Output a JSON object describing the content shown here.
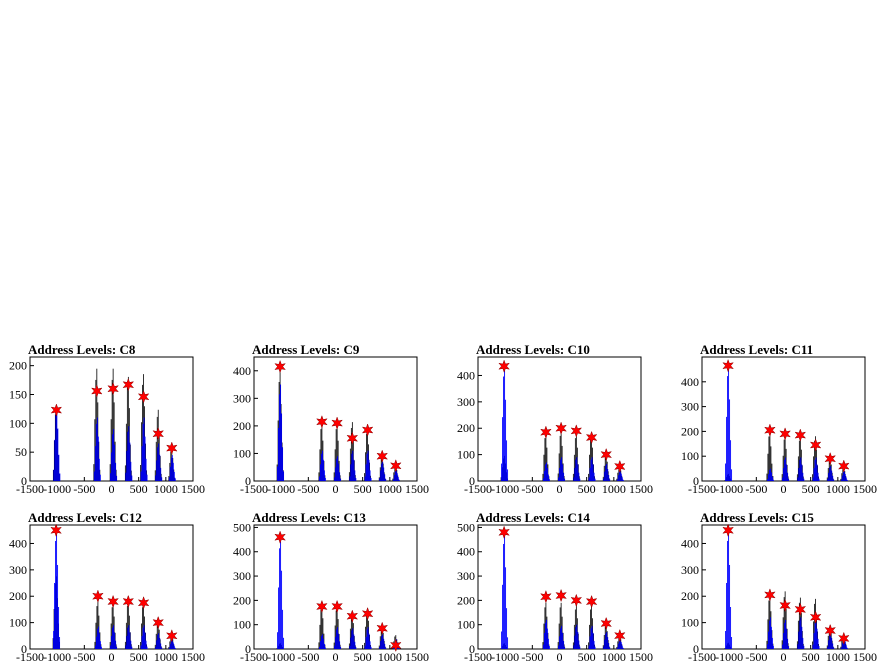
{
  "chart_data": [
    {
      "type": "line",
      "title": "Address Levels: C8",
      "xlim": [
        -1500,
        1500
      ],
      "ylim": [
        0,
        215
      ],
      "x_ticks": [
        -1500,
        -1000,
        -500,
        0,
        500,
        1000,
        1500
      ],
      "x_tick_labels": [
        "-1500",
        "-1000",
        "-500",
        "0",
        "500",
        "1000",
        "1500"
      ],
      "y_ticks": [
        0,
        50,
        100,
        150,
        200
      ],
      "y_tick_labels": [
        "0",
        "50",
        "100",
        "150",
        "200"
      ],
      "grid": false,
      "colors": {
        "hist_raw": "#000000",
        "hist_smooth": "#0000ff",
        "marker": "#ff0000"
      },
      "peaks": [
        {
          "x": -1015,
          "y": 130,
          "raw": 135
        },
        {
          "x": -270,
          "y": 110,
          "raw": 205
        },
        {
          "x": 30,
          "y": 90,
          "raw": 205
        },
        {
          "x": 310,
          "y": 95,
          "raw": 190
        },
        {
          "x": 590,
          "y": 110,
          "raw": 195
        },
        {
          "x": 860,
          "y": 65,
          "raw": 130
        },
        {
          "x": 1110,
          "y": 45,
          "raw": 60
        }
      ],
      "markers": [
        {
          "x": -1015,
          "y": 123
        },
        {
          "x": -270,
          "y": 156
        },
        {
          "x": 30,
          "y": 160
        },
        {
          "x": 310,
          "y": 167
        },
        {
          "x": 590,
          "y": 146
        },
        {
          "x": 860,
          "y": 82
        },
        {
          "x": 1110,
          "y": 57
        }
      ]
    },
    {
      "type": "line",
      "title": "Address Levels: C9",
      "xlim": [
        -1500,
        1500
      ],
      "ylim": [
        0,
        450
      ],
      "x_ticks": [
        -1500,
        -1000,
        -500,
        0,
        500,
        1000,
        1500
      ],
      "x_tick_labels": [
        "-1500",
        "-1000",
        "-500",
        "0",
        "500",
        "1000",
        "1500"
      ],
      "y_ticks": [
        0,
        100,
        200,
        300,
        400
      ],
      "y_tick_labels": [
        "0",
        "100",
        "200",
        "300",
        "400"
      ],
      "grid": false,
      "colors": {
        "hist_raw": "#000000",
        "hist_smooth": "#0000ff",
        "marker": "#ff0000"
      },
      "peaks": [
        {
          "x": -1020,
          "y": 350,
          "raw": 420
        },
        {
          "x": -250,
          "y": 110,
          "raw": 220
        },
        {
          "x": 30,
          "y": 90,
          "raw": 220
        },
        {
          "x": 310,
          "y": 110,
          "raw": 225
        },
        {
          "x": 590,
          "y": 110,
          "raw": 200
        },
        {
          "x": 860,
          "y": 70,
          "raw": 95
        },
        {
          "x": 1110,
          "y": 40,
          "raw": 60
        }
      ],
      "markers": [
        {
          "x": -1020,
          "y": 415
        },
        {
          "x": -250,
          "y": 215
        },
        {
          "x": 30,
          "y": 210
        },
        {
          "x": 310,
          "y": 155
        },
        {
          "x": 590,
          "y": 185
        },
        {
          "x": 860,
          "y": 90
        },
        {
          "x": 1110,
          "y": 55
        }
      ]
    },
    {
      "type": "line",
      "title": "Address Levels: C10",
      "xlim": [
        -1500,
        1500
      ],
      "ylim": [
        0,
        470
      ],
      "x_ticks": [
        -1500,
        -1000,
        -500,
        0,
        500,
        1000,
        1500
      ],
      "x_tick_labels": [
        "-1500",
        "-1000",
        "-500",
        "0",
        "500",
        "1000",
        "1500"
      ],
      "y_ticks": [
        0,
        100,
        200,
        300,
        400
      ],
      "y_tick_labels": [
        "0",
        "100",
        "200",
        "300",
        "400"
      ],
      "grid": false,
      "colors": {
        "hist_raw": "#000000",
        "hist_smooth": "#0000ff",
        "marker": "#ff0000"
      },
      "peaks": [
        {
          "x": -1020,
          "y": 440,
          "raw": 100
        },
        {
          "x": -250,
          "y": 70,
          "raw": 190
        },
        {
          "x": 30,
          "y": 90,
          "raw": 200
        },
        {
          "x": 310,
          "y": 90,
          "raw": 190
        },
        {
          "x": 590,
          "y": 90,
          "raw": 190
        },
        {
          "x": 860,
          "y": 65,
          "raw": 110
        },
        {
          "x": 1110,
          "y": 40,
          "raw": 60
        }
      ],
      "markers": [
        {
          "x": -1020,
          "y": 435
        },
        {
          "x": -250,
          "y": 185
        },
        {
          "x": 30,
          "y": 200
        },
        {
          "x": 310,
          "y": 190
        },
        {
          "x": 590,
          "y": 165
        },
        {
          "x": 860,
          "y": 100
        },
        {
          "x": 1110,
          "y": 55
        }
      ]
    },
    {
      "type": "line",
      "title": "Address Levels: C11",
      "xlim": [
        -1500,
        1500
      ],
      "ylim": [
        0,
        500
      ],
      "x_ticks": [
        -1500,
        -1000,
        -500,
        0,
        500,
        1000,
        1500
      ],
      "x_tick_labels": [
        "-1500",
        "-1000",
        "-500",
        "0",
        "500",
        "1000",
        "1500"
      ],
      "y_ticks": [
        0,
        100,
        200,
        300,
        400
      ],
      "y_tick_labels": [
        "0",
        "100",
        "200",
        "300",
        "400"
      ],
      "grid": false,
      "colors": {
        "hist_raw": "#000000",
        "hist_smooth": "#0000ff",
        "marker": "#ff0000"
      },
      "peaks": [
        {
          "x": -1020,
          "y": 470,
          "raw": 30
        },
        {
          "x": -250,
          "y": 50,
          "raw": 210
        },
        {
          "x": 30,
          "y": 95,
          "raw": 195
        },
        {
          "x": 310,
          "y": 95,
          "raw": 190
        },
        {
          "x": 590,
          "y": 95,
          "raw": 190
        },
        {
          "x": 860,
          "y": 60,
          "raw": 100
        },
        {
          "x": 1110,
          "y": 40,
          "raw": 60
        }
      ],
      "markers": [
        {
          "x": -1020,
          "y": 465
        },
        {
          "x": -250,
          "y": 205
        },
        {
          "x": 30,
          "y": 190
        },
        {
          "x": 310,
          "y": 185
        },
        {
          "x": 590,
          "y": 145
        },
        {
          "x": 860,
          "y": 90
        },
        {
          "x": 1110,
          "y": 60
        }
      ]
    },
    {
      "type": "line",
      "title": "Address Levels: C12",
      "xlim": [
        -1500,
        1500
      ],
      "ylim": [
        0,
        470
      ],
      "x_ticks": [
        -1500,
        -1000,
        -500,
        0,
        500,
        1000,
        1500
      ],
      "x_tick_labels": [
        "-1500",
        "-1000",
        "-500",
        "0",
        "500",
        "1000",
        "1500"
      ],
      "y_ticks": [
        0,
        100,
        200,
        300,
        400
      ],
      "y_tick_labels": [
        "0",
        "100",
        "200",
        "300",
        "400"
      ],
      "grid": false,
      "colors": {
        "hist_raw": "#000000",
        "hist_smooth": "#0000ff",
        "marker": "#ff0000"
      },
      "peaks": [
        {
          "x": -1020,
          "y": 455,
          "raw": 290
        },
        {
          "x": -250,
          "y": 85,
          "raw": 190
        },
        {
          "x": 30,
          "y": 90,
          "raw": 185
        },
        {
          "x": 310,
          "y": 90,
          "raw": 190
        },
        {
          "x": 590,
          "y": 90,
          "raw": 185
        },
        {
          "x": 860,
          "y": 60,
          "raw": 110
        },
        {
          "x": 1110,
          "y": 35,
          "raw": 55
        }
      ],
      "markers": [
        {
          "x": -1020,
          "y": 450
        },
        {
          "x": -250,
          "y": 200
        },
        {
          "x": 30,
          "y": 180
        },
        {
          "x": 310,
          "y": 180
        },
        {
          "x": 590,
          "y": 175
        },
        {
          "x": 860,
          "y": 100
        },
        {
          "x": 1110,
          "y": 50
        }
      ]
    },
    {
      "type": "line",
      "title": "Address Levels: C13",
      "xlim": [
        -1500,
        1500
      ],
      "ylim": [
        0,
        510
      ],
      "x_ticks": [
        -1500,
        -1000,
        -500,
        0,
        500,
        1000,
        1500
      ],
      "x_tick_labels": [
        "-1500",
        "-1000",
        "-500",
        "0",
        "500",
        "1000",
        "1500"
      ],
      "y_ticks": [
        0,
        100,
        200,
        300,
        400,
        500
      ],
      "y_tick_labels": [
        "0",
        "100",
        "200",
        "300",
        "400",
        "500"
      ],
      "grid": false,
      "colors": {
        "hist_raw": "#000000",
        "hist_smooth": "#0000ff",
        "marker": "#ff0000"
      },
      "peaks": [
        {
          "x": -1020,
          "y": 460,
          "raw": 25
        },
        {
          "x": -250,
          "y": 60,
          "raw": 190
        },
        {
          "x": 30,
          "y": 90,
          "raw": 185
        },
        {
          "x": 310,
          "y": 85,
          "raw": 160
        },
        {
          "x": 590,
          "y": 90,
          "raw": 175
        },
        {
          "x": 860,
          "y": 60,
          "raw": 100
        },
        {
          "x": 1110,
          "y": 40,
          "raw": 60
        }
      ],
      "markers": [
        {
          "x": -1020,
          "y": 460
        },
        {
          "x": -250,
          "y": 175
        },
        {
          "x": 30,
          "y": 175
        },
        {
          "x": 310,
          "y": 135
        },
        {
          "x": 590,
          "y": 145
        },
        {
          "x": 860,
          "y": 85
        },
        {
          "x": 1110,
          "y": 15
        }
      ]
    },
    {
      "type": "line",
      "title": "Address Levels: C14",
      "xlim": [
        -1500,
        1500
      ],
      "ylim": [
        0,
        510
      ],
      "x_ticks": [
        -1500,
        -1000,
        -500,
        0,
        500,
        1000,
        1500
      ],
      "x_tick_labels": [
        "-1500",
        "-1000",
        "-500",
        "0",
        "500",
        "1000",
        "1500"
      ],
      "y_ticks": [
        0,
        100,
        200,
        300,
        400,
        500
      ],
      "y_tick_labels": [
        "0",
        "100",
        "200",
        "300",
        "400",
        "500"
      ],
      "grid": false,
      "colors": {
        "hist_raw": "#000000",
        "hist_smooth": "#0000ff",
        "marker": "#ff0000"
      },
      "peaks": [
        {
          "x": -1020,
          "y": 480,
          "raw": 25
        },
        {
          "x": -250,
          "y": 120,
          "raw": 200
        },
        {
          "x": 30,
          "y": 95,
          "raw": 200
        },
        {
          "x": 310,
          "y": 100,
          "raw": 190
        },
        {
          "x": 590,
          "y": 95,
          "raw": 190
        },
        {
          "x": 860,
          "y": 70,
          "raw": 110
        },
        {
          "x": 1110,
          "y": 40,
          "raw": 60
        }
      ],
      "markers": [
        {
          "x": -1020,
          "y": 480
        },
        {
          "x": -250,
          "y": 215
        },
        {
          "x": 30,
          "y": 220
        },
        {
          "x": 310,
          "y": 200
        },
        {
          "x": 590,
          "y": 195
        },
        {
          "x": 860,
          "y": 105
        },
        {
          "x": 1110,
          "y": 55
        }
      ]
    },
    {
      "type": "line",
      "title": "Address Levels: C15",
      "xlim": [
        -1500,
        1500
      ],
      "ylim": [
        0,
        470
      ],
      "x_ticks": [
        -1500,
        -1000,
        -500,
        0,
        500,
        1000,
        1500
      ],
      "x_tick_labels": [
        "-1500",
        "-1000",
        "-500",
        "0",
        "500",
        "1000",
        "1500"
      ],
      "y_ticks": [
        0,
        100,
        200,
        300,
        400
      ],
      "y_tick_labels": [
        "0",
        "100",
        "200",
        "300",
        "400"
      ],
      "grid": false,
      "colors": {
        "hist_raw": "#000000",
        "hist_smooth": "#0000ff",
        "marker": "#ff0000"
      },
      "peaks": [
        {
          "x": -1020,
          "y": 455,
          "raw": 25
        },
        {
          "x": -250,
          "y": 120,
          "raw": 215
        },
        {
          "x": 30,
          "y": 110,
          "raw": 230
        },
        {
          "x": 310,
          "y": 120,
          "raw": 205
        },
        {
          "x": 590,
          "y": 110,
          "raw": 200
        },
        {
          "x": 860,
          "y": 60,
          "raw": 95
        },
        {
          "x": 1110,
          "y": 40,
          "raw": 60
        }
      ],
      "markers": [
        {
          "x": -1020,
          "y": 450
        },
        {
          "x": -250,
          "y": 205
        },
        {
          "x": 30,
          "y": 165
        },
        {
          "x": 310,
          "y": 150
        },
        {
          "x": 590,
          "y": 120
        },
        {
          "x": 860,
          "y": 70
        },
        {
          "x": 1110,
          "y": 40
        }
      ]
    }
  ]
}
